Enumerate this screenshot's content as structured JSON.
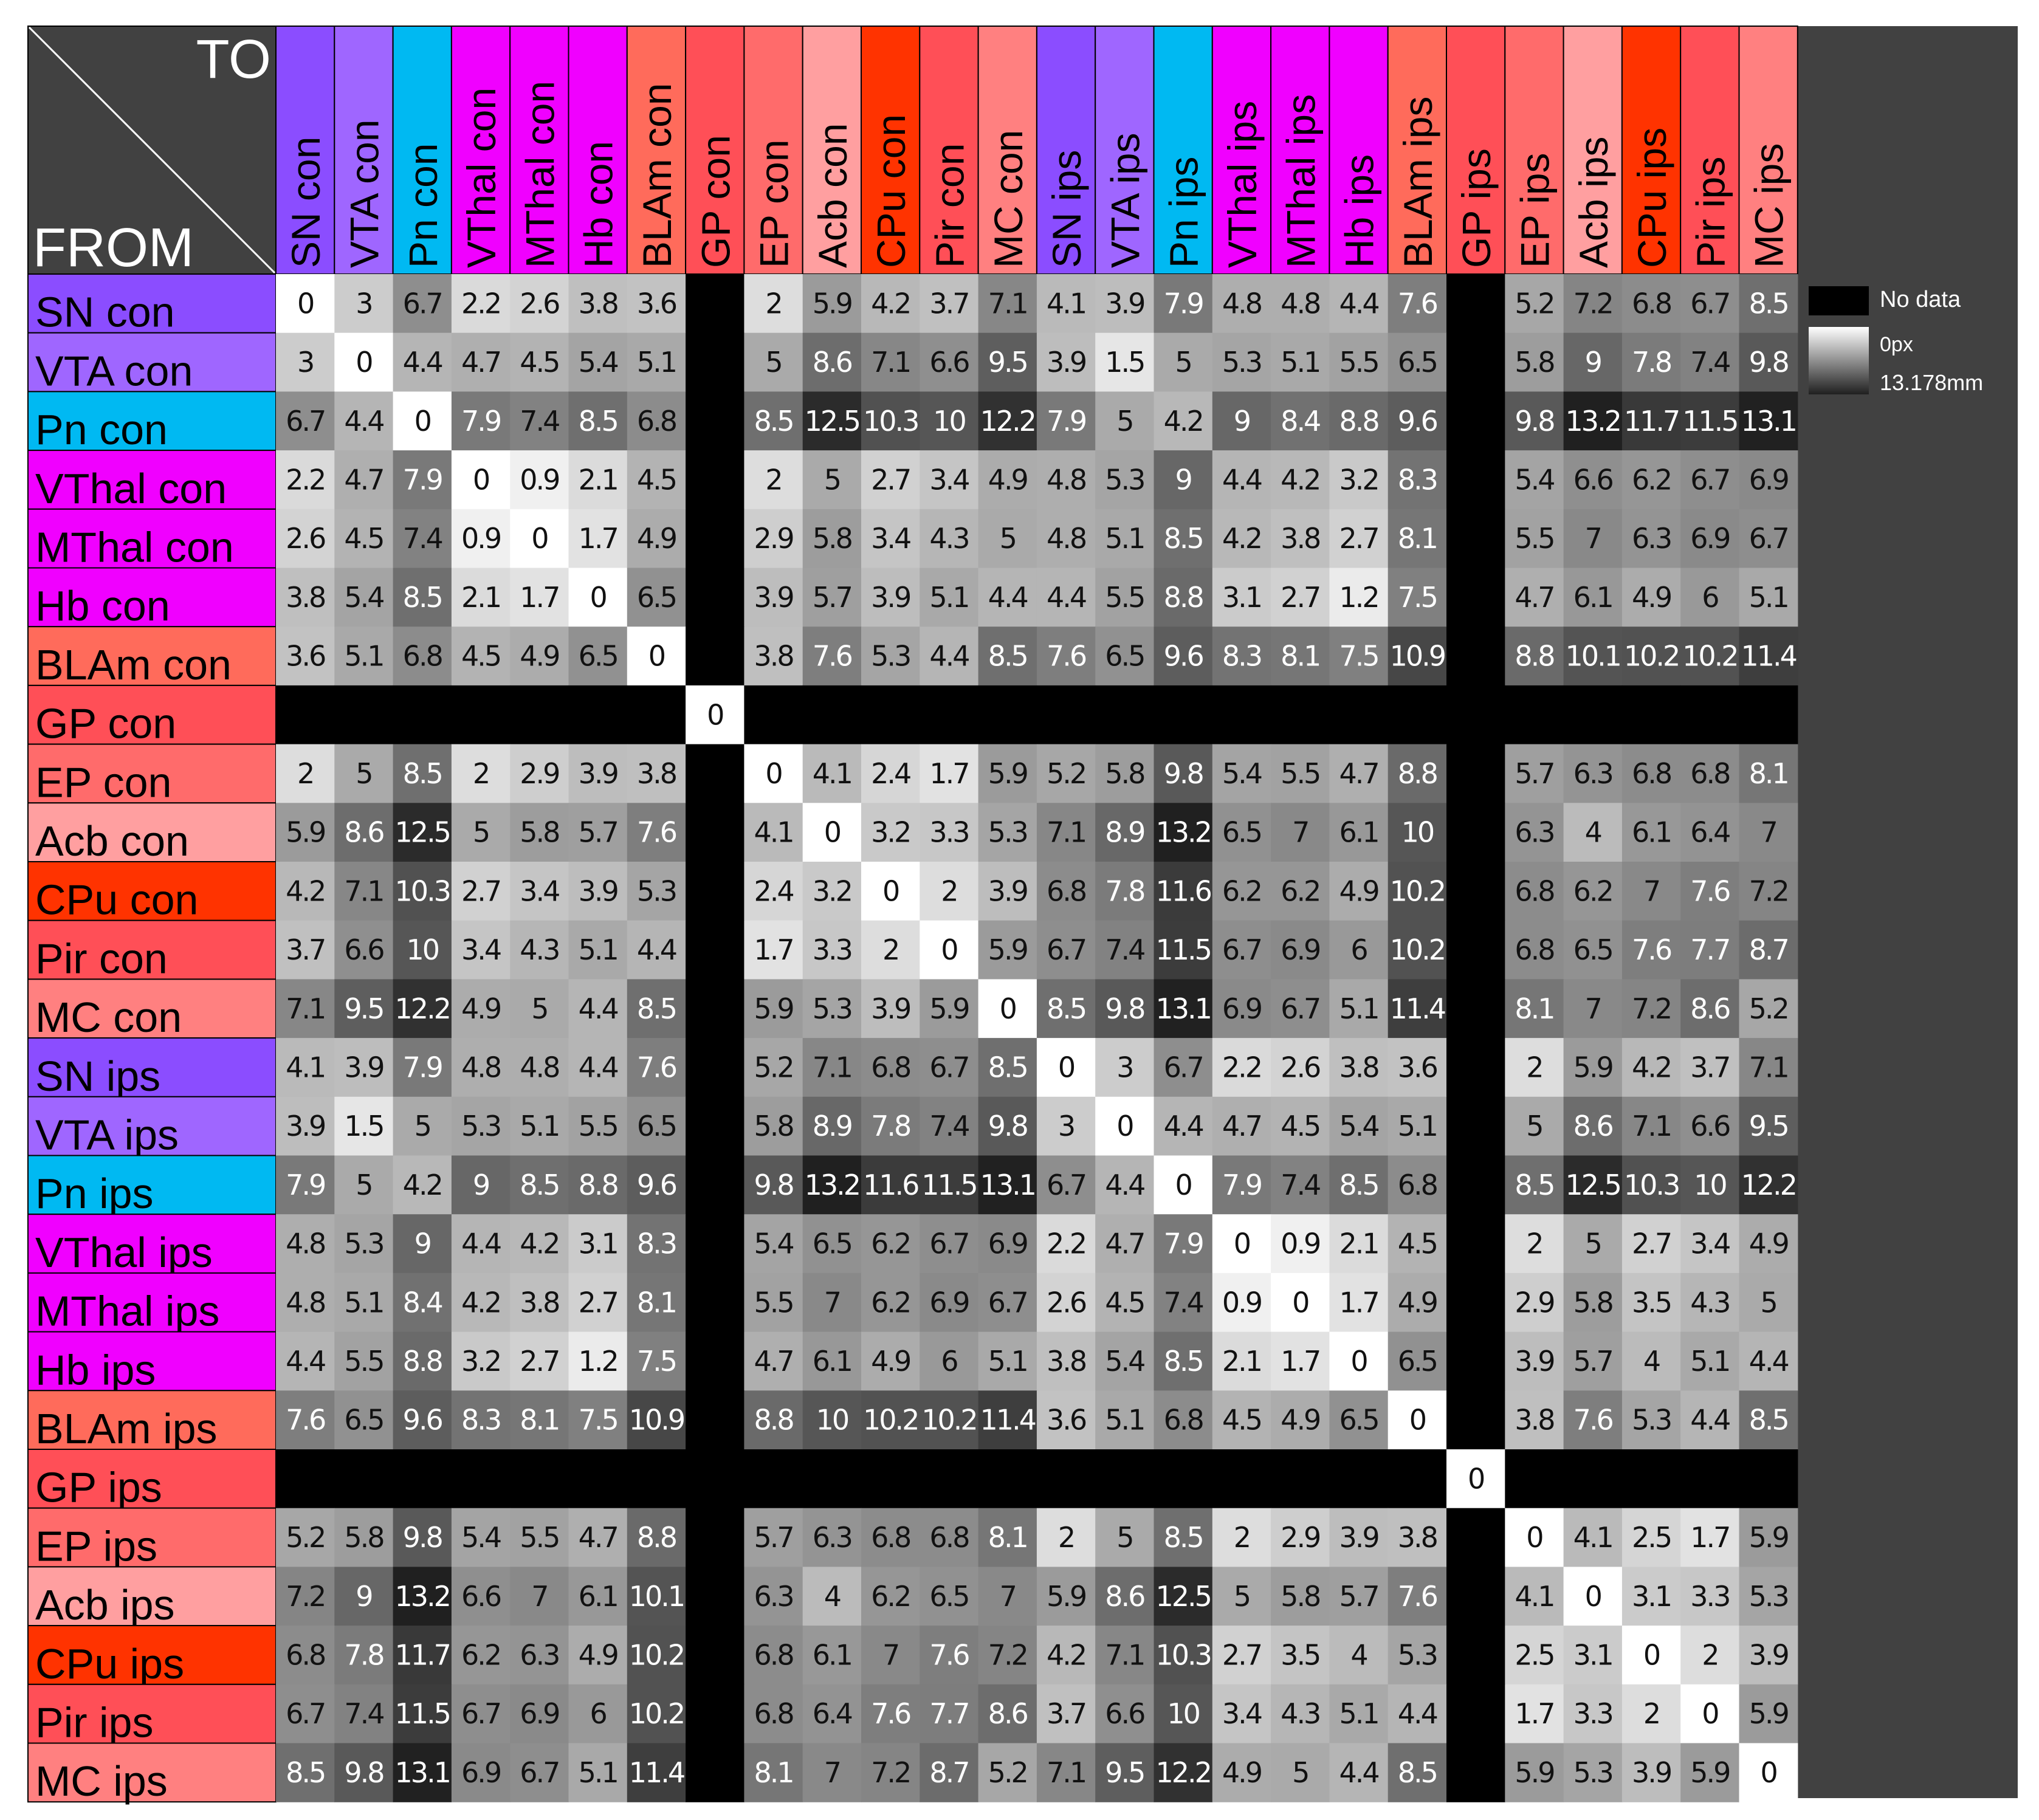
{
  "chart_data": {
    "type": "heatmap",
    "corner": {
      "to_label": "TO",
      "from_label": "FROM"
    },
    "row_labels": [
      "SN con",
      "VTA con",
      "Pn con",
      "VThal con",
      "MThal con",
      "Hb con",
      "BLAm con",
      "GP con",
      "EP con",
      "Acb con",
      "CPu con",
      "Pir con",
      "MC con",
      "SN ips",
      "VTA ips",
      "Pn ips",
      "VThal ips",
      "MThal ips",
      "Hb ips",
      "BLAm ips",
      "GP ips",
      "EP ips",
      "Acb ips",
      "CPu ips",
      "Pir ips",
      "MC ips"
    ],
    "col_labels": [
      "SN con",
      "VTA con",
      "Pn con",
      "VThal con",
      "MThal con",
      "Hb con",
      "BLAm con",
      "GP con",
      "EP con",
      "Acb con",
      "CPu con",
      "Pir con",
      "MC con",
      "SN ips",
      "VTA ips",
      "Pn ips",
      "VThal ips",
      "MThal ips",
      "Hb ips",
      "BLAm ips",
      "GP ips",
      "EP ips",
      "Acb ips",
      "CPu ips",
      "Pir ips",
      "MC ips"
    ],
    "label_colors": [
      "#8b4dff",
      "#9f66ff",
      "#00b9f2",
      "#f000ff",
      "#f000ff",
      "#f000ff",
      "#ff6b5b",
      "#ff4f57",
      "#ff6b6b",
      "#ff9fa0",
      "#ff3300",
      "#ff4f57",
      "#ff8080",
      "#8b4dff",
      "#9f66ff",
      "#00b9f2",
      "#f000ff",
      "#f000ff",
      "#f000ff",
      "#ff6b5b",
      "#ff4f57",
      "#ff6b6b",
      "#ff9fa0",
      "#ff3300",
      "#ff4f57",
      "#ff8080"
    ],
    "values": [
      [
        0,
        3,
        6.7,
        2.2,
        2.6,
        3.8,
        3.6,
        null,
        2,
        5.9,
        4.2,
        3.7,
        7.1,
        4.1,
        3.9,
        7.9,
        4.8,
        4.8,
        4.4,
        7.6,
        null,
        5.2,
        7.2,
        6.8,
        6.7,
        8.5
      ],
      [
        3,
        0,
        4.4,
        4.7,
        4.5,
        5.4,
        5.1,
        null,
        5,
        8.6,
        7.1,
        6.6,
        9.5,
        3.9,
        1.5,
        5,
        5.3,
        5.1,
        5.5,
        6.5,
        null,
        5.8,
        9,
        7.8,
        7.4,
        9.8
      ],
      [
        6.7,
        4.4,
        0,
        7.9,
        7.4,
        8.5,
        6.8,
        null,
        8.5,
        12.5,
        10.3,
        10,
        12.2,
        7.9,
        5,
        4.2,
        9,
        8.4,
        8.8,
        9.6,
        null,
        9.8,
        13.2,
        11.7,
        11.5,
        13.1
      ],
      [
        2.2,
        4.7,
        7.9,
        0,
        0.9,
        2.1,
        4.5,
        null,
        2,
        5,
        2.7,
        3.4,
        4.9,
        4.8,
        5.3,
        9,
        4.4,
        4.2,
        3.2,
        8.3,
        null,
        5.4,
        6.6,
        6.2,
        6.7,
        6.9
      ],
      [
        2.6,
        4.5,
        7.4,
        0.9,
        0,
        1.7,
        4.9,
        null,
        2.9,
        5.8,
        3.4,
        4.3,
        5,
        4.8,
        5.1,
        8.5,
        4.2,
        3.8,
        2.7,
        8.1,
        null,
        5.5,
        7,
        6.3,
        6.9,
        6.7
      ],
      [
        3.8,
        5.4,
        8.5,
        2.1,
        1.7,
        0,
        6.5,
        null,
        3.9,
        5.7,
        3.9,
        5.1,
        4.4,
        4.4,
        5.5,
        8.8,
        3.1,
        2.7,
        1.2,
        7.5,
        null,
        4.7,
        6.1,
        4.9,
        6,
        5.1
      ],
      [
        3.6,
        5.1,
        6.8,
        4.5,
        4.9,
        6.5,
        0,
        null,
        3.8,
        7.6,
        5.3,
        4.4,
        8.5,
        7.6,
        6.5,
        9.6,
        8.3,
        8.1,
        7.5,
        10.9,
        null,
        8.8,
        10.1,
        10.2,
        10.2,
        11.4
      ],
      [
        null,
        null,
        null,
        null,
        null,
        null,
        null,
        0,
        null,
        null,
        null,
        null,
        null,
        null,
        null,
        null,
        null,
        null,
        null,
        null,
        null,
        null,
        null,
        null,
        null,
        null
      ],
      [
        2,
        5,
        8.5,
        2,
        2.9,
        3.9,
        3.8,
        null,
        0,
        4.1,
        2.4,
        1.7,
        5.9,
        5.2,
        5.8,
        9.8,
        5.4,
        5.5,
        4.7,
        8.8,
        null,
        5.7,
        6.3,
        6.8,
        6.8,
        8.1
      ],
      [
        5.9,
        8.6,
        12.5,
        5,
        5.8,
        5.7,
        7.6,
        null,
        4.1,
        0,
        3.2,
        3.3,
        5.3,
        7.1,
        8.9,
        13.2,
        6.5,
        7,
        6.1,
        10,
        null,
        6.3,
        4,
        6.1,
        6.4,
        7
      ],
      [
        4.2,
        7.1,
        10.3,
        2.7,
        3.4,
        3.9,
        5.3,
        null,
        2.4,
        3.2,
        0,
        2,
        3.9,
        6.8,
        7.8,
        11.6,
        6.2,
        6.2,
        4.9,
        10.2,
        null,
        6.8,
        6.2,
        7,
        7.6,
        7.2
      ],
      [
        3.7,
        6.6,
        10,
        3.4,
        4.3,
        5.1,
        4.4,
        null,
        1.7,
        3.3,
        2,
        0,
        5.9,
        6.7,
        7.4,
        11.5,
        6.7,
        6.9,
        6,
        10.2,
        null,
        6.8,
        6.5,
        7.6,
        7.7,
        8.7
      ],
      [
        7.1,
        9.5,
        12.2,
        4.9,
        5,
        4.4,
        8.5,
        null,
        5.9,
        5.3,
        3.9,
        5.9,
        0,
        8.5,
        9.8,
        13.1,
        6.9,
        6.7,
        5.1,
        11.4,
        null,
        8.1,
        7,
        7.2,
        8.6,
        5.2
      ],
      [
        4.1,
        3.9,
        7.9,
        4.8,
        4.8,
        4.4,
        7.6,
        null,
        5.2,
        7.1,
        6.8,
        6.7,
        8.5,
        0,
        3,
        6.7,
        2.2,
        2.6,
        3.8,
        3.6,
        null,
        2,
        5.9,
        4.2,
        3.7,
        7.1
      ],
      [
        3.9,
        1.5,
        5,
        5.3,
        5.1,
        5.5,
        6.5,
        null,
        5.8,
        8.9,
        7.8,
        7.4,
        9.8,
        3,
        0,
        4.4,
        4.7,
        4.5,
        5.4,
        5.1,
        null,
        5,
        8.6,
        7.1,
        6.6,
        9.5
      ],
      [
        7.9,
        5,
        4.2,
        9,
        8.5,
        8.8,
        9.6,
        null,
        9.8,
        13.2,
        11.6,
        11.5,
        13.1,
        6.7,
        4.4,
        0,
        7.9,
        7.4,
        8.5,
        6.8,
        null,
        8.5,
        12.5,
        10.3,
        10,
        12.2
      ],
      [
        4.8,
        5.3,
        9,
        4.4,
        4.2,
        3.1,
        8.3,
        null,
        5.4,
        6.5,
        6.2,
        6.7,
        6.9,
        2.2,
        4.7,
        7.9,
        0,
        0.9,
        2.1,
        4.5,
        null,
        2,
        5,
        2.7,
        3.4,
        4.9
      ],
      [
        4.8,
        5.1,
        8.4,
        4.2,
        3.8,
        2.7,
        8.1,
        null,
        5.5,
        7,
        6.2,
        6.9,
        6.7,
        2.6,
        4.5,
        7.4,
        0.9,
        0,
        1.7,
        4.9,
        null,
        2.9,
        5.8,
        3.5,
        4.3,
        5
      ],
      [
        4.4,
        5.5,
        8.8,
        3.2,
        2.7,
        1.2,
        7.5,
        null,
        4.7,
        6.1,
        4.9,
        6,
        5.1,
        3.8,
        5.4,
        8.5,
        2.1,
        1.7,
        0,
        6.5,
        null,
        3.9,
        5.7,
        4,
        5.1,
        4.4
      ],
      [
        7.6,
        6.5,
        9.6,
        8.3,
        8.1,
        7.5,
        10.9,
        null,
        8.8,
        10,
        10.2,
        10.2,
        11.4,
        3.6,
        5.1,
        6.8,
        4.5,
        4.9,
        6.5,
        0,
        null,
        3.8,
        7.6,
        5.3,
        4.4,
        8.5
      ],
      [
        null,
        null,
        null,
        null,
        null,
        null,
        null,
        null,
        null,
        null,
        null,
        null,
        null,
        null,
        null,
        null,
        null,
        null,
        null,
        null,
        0,
        null,
        null,
        null,
        null,
        null
      ],
      [
        5.2,
        5.8,
        9.8,
        5.4,
        5.5,
        4.7,
        8.8,
        null,
        5.7,
        6.3,
        6.8,
        6.8,
        8.1,
        2,
        5,
        8.5,
        2,
        2.9,
        3.9,
        3.8,
        null,
        0,
        4.1,
        2.5,
        1.7,
        5.9
      ],
      [
        7.2,
        9,
        13.2,
        6.6,
        7,
        6.1,
        10.1,
        null,
        6.3,
        4,
        6.2,
        6.5,
        7,
        5.9,
        8.6,
        12.5,
        5,
        5.8,
        5.7,
        7.6,
        null,
        4.1,
        0,
        3.1,
        3.3,
        5.3
      ],
      [
        6.8,
        7.8,
        11.7,
        6.2,
        6.3,
        4.9,
        10.2,
        null,
        6.8,
        6.1,
        7,
        7.6,
        7.2,
        4.2,
        7.1,
        10.3,
        2.7,
        3.5,
        4,
        5.3,
        null,
        2.5,
        3.1,
        0,
        2,
        3.9
      ],
      [
        6.7,
        7.4,
        11.5,
        6.7,
        6.9,
        6,
        10.2,
        null,
        6.8,
        6.4,
        7.6,
        7.7,
        8.6,
        3.7,
        6.6,
        10,
        3.4,
        4.3,
        5.1,
        4.4,
        null,
        1.7,
        3.3,
        2,
        0,
        5.9
      ],
      [
        8.5,
        9.8,
        13.1,
        6.9,
        6.7,
        5.1,
        11.4,
        null,
        8.1,
        7,
        7.2,
        8.7,
        5.2,
        7.1,
        9.5,
        12.2,
        4.9,
        5,
        4.4,
        8.5,
        null,
        5.9,
        5.3,
        3.9,
        5.9,
        0
      ]
    ],
    "colorscale": {
      "min": 0,
      "max": 13.178,
      "min_color": "#ffffff",
      "max_color": "#202020",
      "no_data_color": "#000000"
    },
    "legend": {
      "position": "right",
      "no_data_label": "No data",
      "min_label": "0px",
      "max_label": "13.178mm"
    }
  }
}
